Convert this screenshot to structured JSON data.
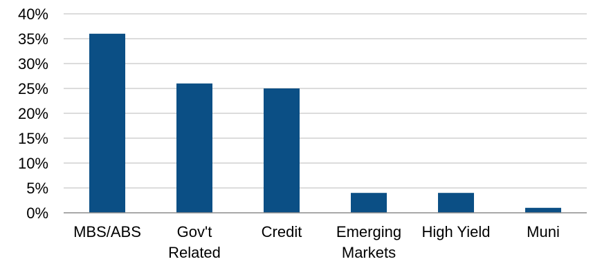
{
  "chart_data": {
    "type": "bar",
    "categories": [
      "MBS/ABS",
      "Gov't Related",
      "Credit",
      "Emerging Markets",
      "High Yield",
      "Muni"
    ],
    "category_lines": [
      [
        "MBS/ABS"
      ],
      [
        "Gov't",
        "Related"
      ],
      [
        "Credit"
      ],
      [
        "Emerging",
        "Markets"
      ],
      [
        "High Yield"
      ],
      [
        "Muni"
      ]
    ],
    "values": [
      36,
      26,
      25,
      4,
      4,
      1
    ],
    "ylim": [
      0,
      40
    ],
    "yticks": [
      0,
      5,
      10,
      15,
      20,
      25,
      30,
      35,
      40
    ],
    "ytick_labels": [
      "0%",
      "5%",
      "10%",
      "15%",
      "20%",
      "25%",
      "30%",
      "35%",
      "40%"
    ],
    "grid": true,
    "bar_color": "#0b4f85",
    "grid_color": "#c8c8c8",
    "axis_color": "#8c8c8c"
  }
}
